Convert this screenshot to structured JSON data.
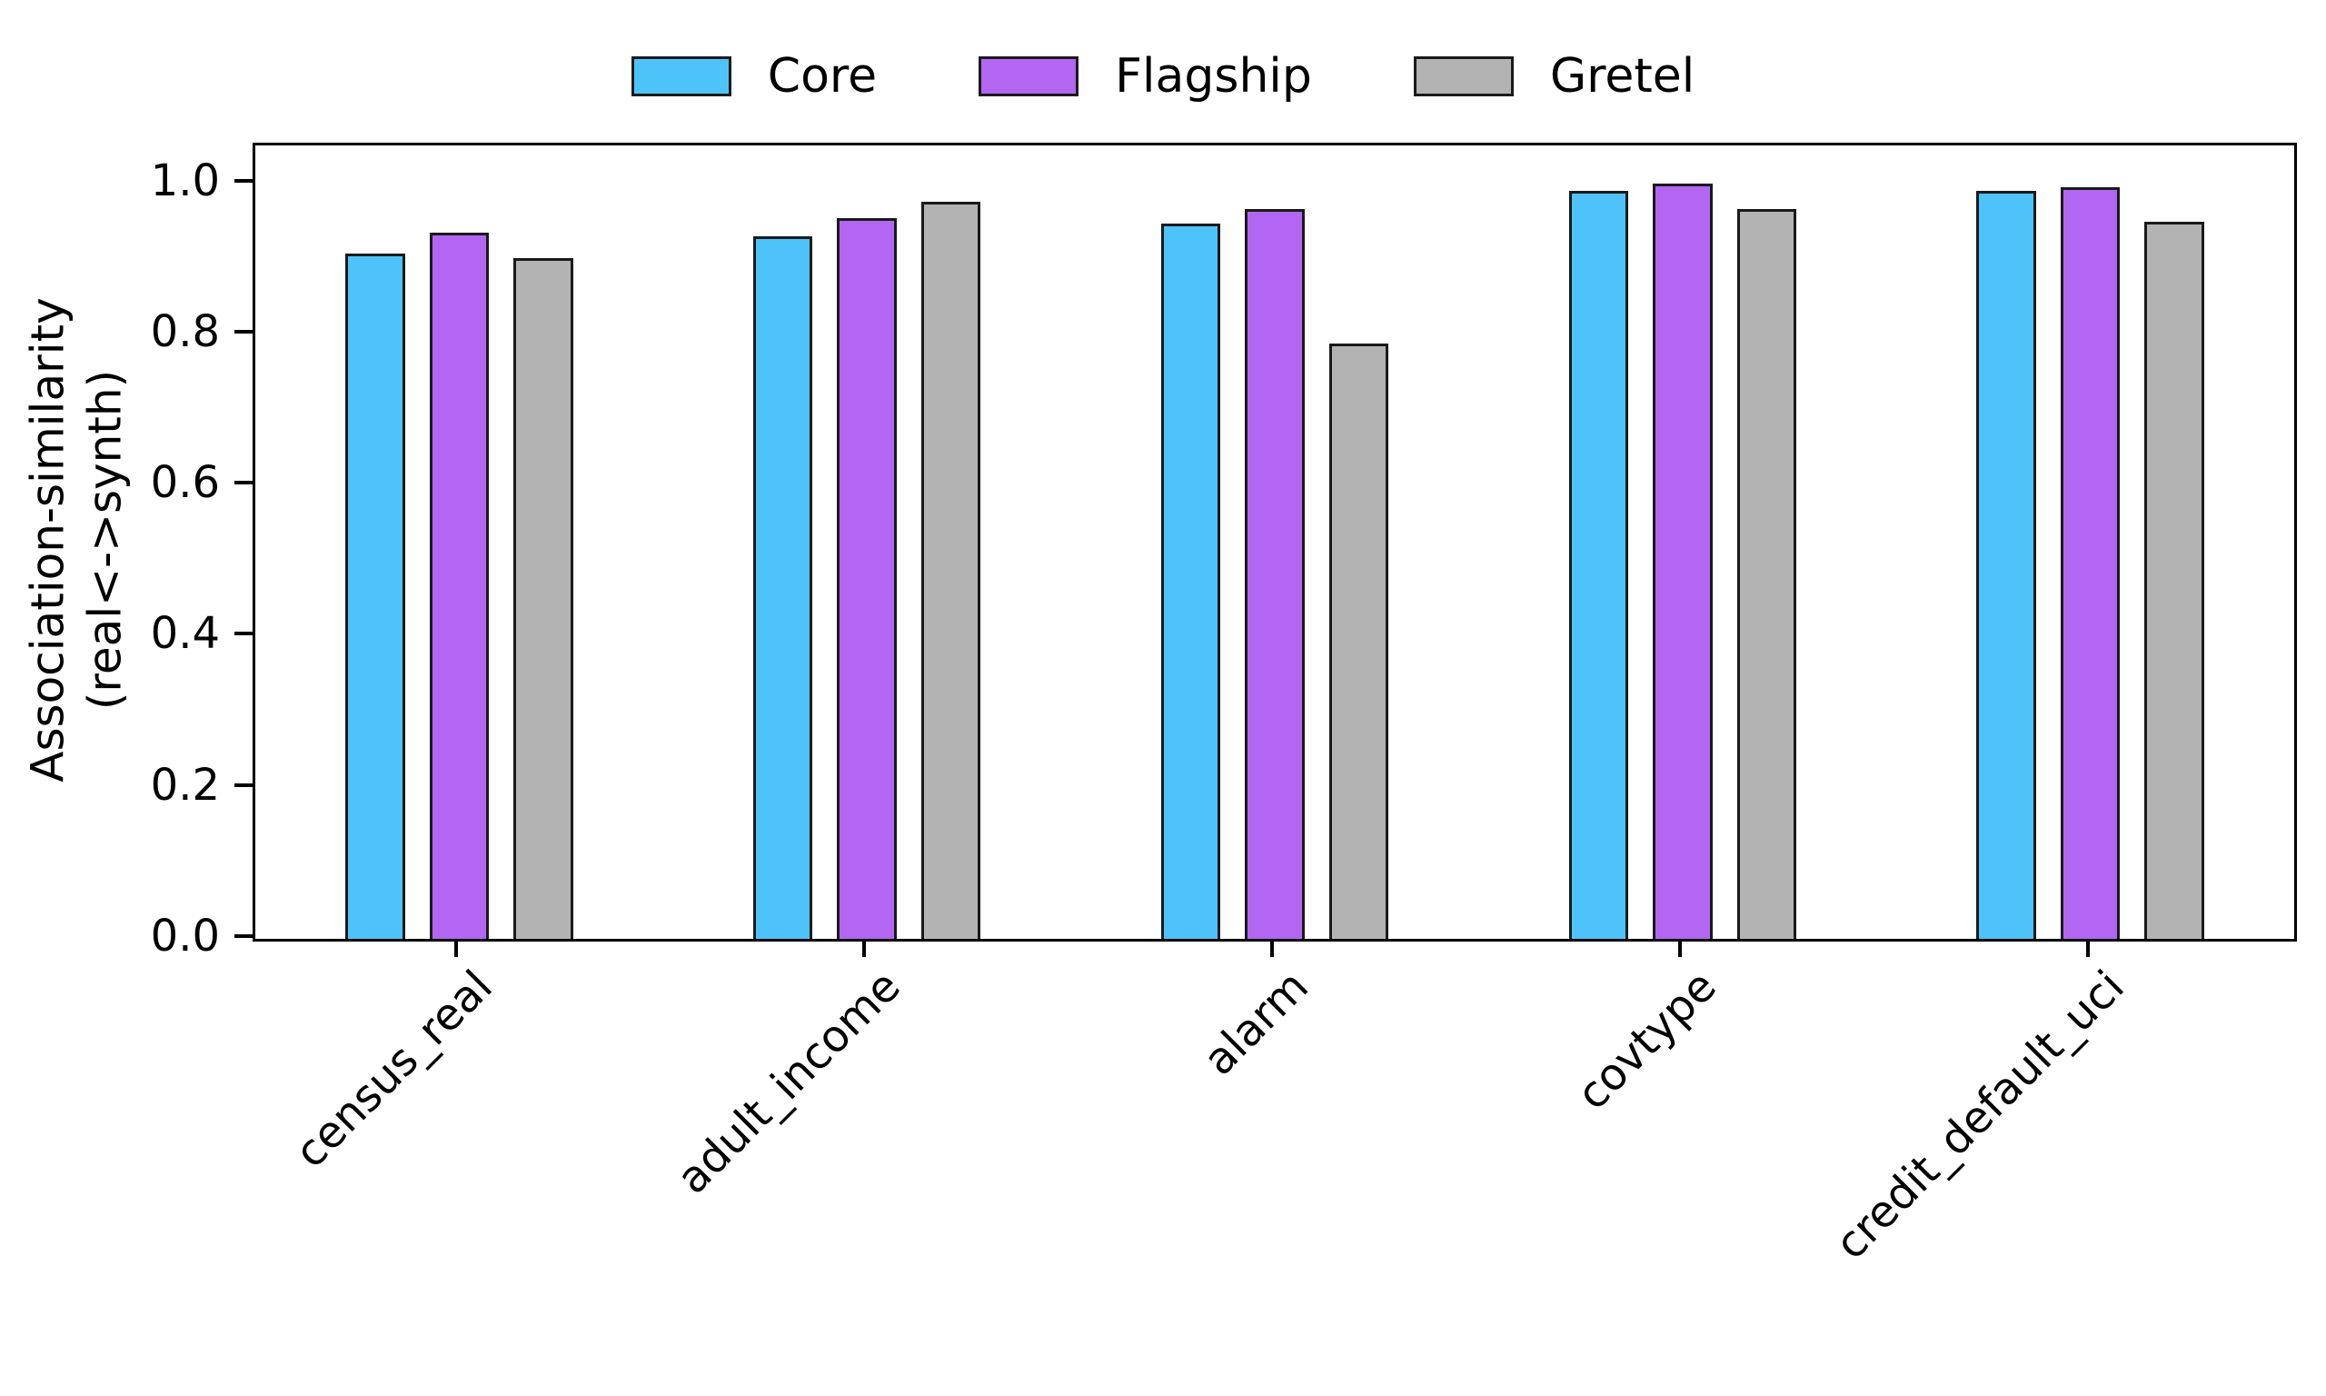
{
  "chart_data": {
    "type": "bar",
    "title": "",
    "ylabel_line1": "Association-similarity",
    "ylabel_line2": "(real<->synth)",
    "xlabel": "",
    "categories": [
      "census_real",
      "adult_income",
      "alarm",
      "covtype",
      "credit_default_uci"
    ],
    "series": [
      {
        "name": "Core",
        "color": "#4DC3FA",
        "values": [
          0.907,
          0.93,
          0.946,
          0.99,
          0.99
        ]
      },
      {
        "name": "Flagship",
        "color": "#B266F2",
        "values": [
          0.934,
          0.954,
          0.966,
          0.999,
          0.995
        ]
      },
      {
        "name": "Gretel",
        "color": "#B3B3B3",
        "values": [
          0.901,
          0.975,
          0.788,
          0.966,
          0.949
        ]
      }
    ],
    "y_ticks": [
      "0.0",
      "0.2",
      "0.4",
      "0.6",
      "0.8",
      "1.0"
    ],
    "y_tick_values": [
      0.0,
      0.2,
      0.4,
      0.6,
      0.8,
      1.0
    ],
    "ylim": [
      0,
      1.05
    ],
    "grid": false,
    "legend_position": "top-center",
    "bar_edge_color": "#1a1a1a",
    "axis_color": "#000000"
  }
}
